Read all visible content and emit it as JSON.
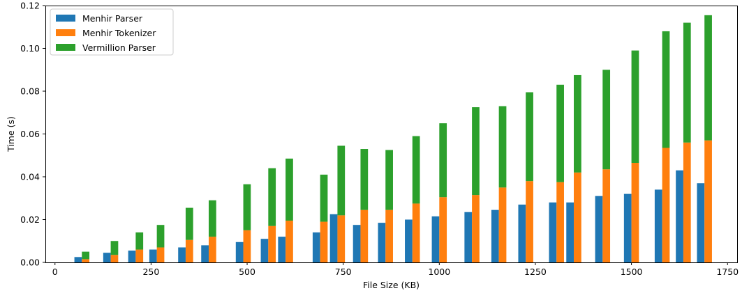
{
  "chart_data": {
    "type": "bar",
    "xlabel": "File Size (KB)",
    "ylabel": "Time (s)",
    "xlim": [
      -25,
      1775
    ],
    "ylim": [
      0,
      0.12
    ],
    "xticks": [
      0,
      250,
      500,
      750,
      1000,
      1250,
      1500,
      1750
    ],
    "yticks": [
      0.0,
      0.02,
      0.04,
      0.06,
      0.08,
      0.1,
      0.12
    ],
    "xtick_labels": [
      "0",
      "250",
      "500",
      "750",
      "1000",
      "1250",
      "1500",
      "1750"
    ],
    "ytick_labels": [
      "0.00",
      "0.02",
      "0.04",
      "0.06",
      "0.08",
      "0.10",
      "0.12"
    ],
    "grid": false,
    "legend": "upper-left",
    "bar_width_kb": 19.5,
    "stacked_series": [
      "Menhir Tokenizer",
      "Vermillion Parser"
    ],
    "x": [
      70,
      145,
      210,
      265,
      340,
      400,
      490,
      555,
      600,
      690,
      735,
      795,
      860,
      930,
      1000,
      1085,
      1155,
      1225,
      1305,
      1350,
      1425,
      1500,
      1580,
      1635,
      1690
    ],
    "series": [
      {
        "name": "Menhir Parser",
        "color": "#1f77b4",
        "values": [
          0.0025,
          0.0045,
          0.0055,
          0.006,
          0.007,
          0.008,
          0.0095,
          0.011,
          0.012,
          0.014,
          0.0225,
          0.0175,
          0.0185,
          0.02,
          0.0215,
          0.0235,
          0.0245,
          0.027,
          0.028,
          0.028,
          0.031,
          0.032,
          0.034,
          0.043,
          0.037
        ]
      },
      {
        "name": "Menhir Tokenizer",
        "color": "#ff7f0e",
        "values": [
          0.0015,
          0.0035,
          0.006,
          0.007,
          0.0105,
          0.012,
          0.015,
          0.017,
          0.0195,
          0.019,
          0.022,
          0.0245,
          0.0245,
          0.0275,
          0.0305,
          0.0315,
          0.035,
          0.038,
          0.0375,
          0.042,
          0.0435,
          0.0465,
          0.0535,
          0.056,
          0.057
        ]
      },
      {
        "name": "Vermillion Parser",
        "color": "#2ca02c",
        "values": [
          0.0035,
          0.0065,
          0.008,
          0.0105,
          0.015,
          0.017,
          0.0215,
          0.027,
          0.029,
          0.022,
          0.0325,
          0.0285,
          0.028,
          0.0315,
          0.0345,
          0.041,
          0.038,
          0.0415,
          0.0455,
          0.0455,
          0.0465,
          0.0525,
          0.0545,
          0.056,
          0.0585
        ]
      }
    ]
  }
}
